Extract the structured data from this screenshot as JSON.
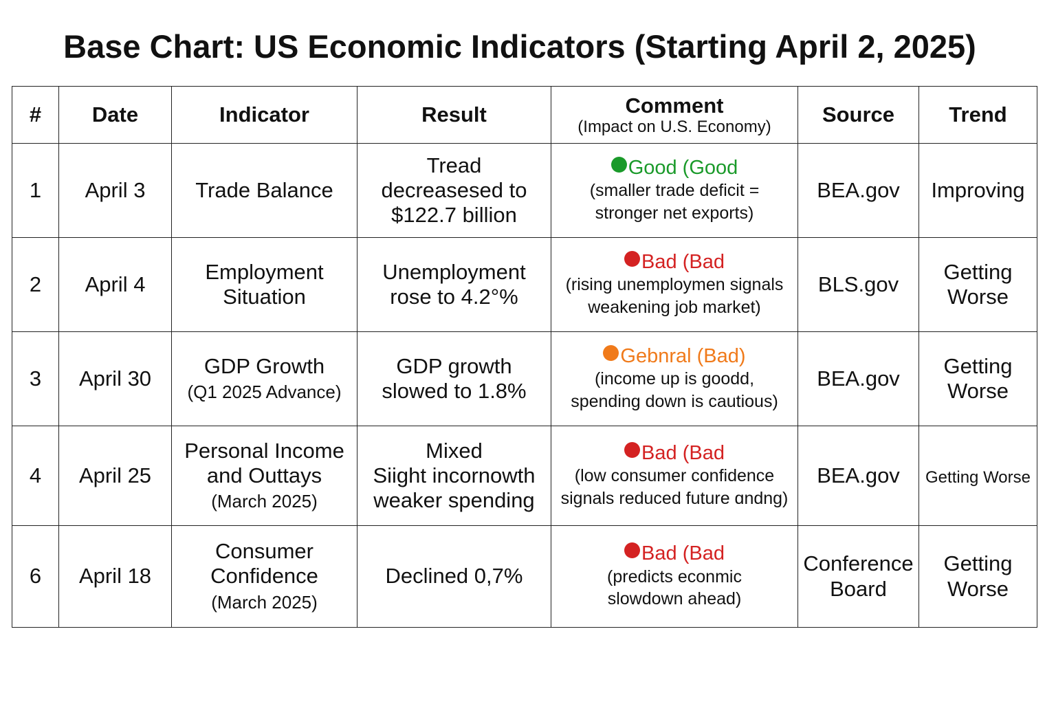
{
  "title": "Base Chart: US Economic Indicators (Starting April 2, 2025)",
  "headers": {
    "num": "#",
    "date": "Date",
    "indicator": "Indicator",
    "result": "Result",
    "comment": "Comment",
    "comment_sub": "(Impact on U.S. Economy)",
    "source": "Source",
    "trend": "Trend"
  },
  "colors": {
    "good": "#1a9a2a",
    "bad": "#d42222",
    "neutral": "#f07a1a"
  },
  "rows": [
    {
      "num": "1",
      "date": "April 3",
      "indicator": [
        "Trade Balance"
      ],
      "result": [
        "Tread",
        "decreasesed to",
        "$122.7 billion"
      ],
      "status": "Good (Good",
      "status_color": "good",
      "comment": [
        "(smaller trade deficit =",
        "stronger net exports)"
      ],
      "source": [
        "BEA.gov"
      ],
      "trend": [
        "Improving"
      ]
    },
    {
      "num": "2",
      "date": "April 4",
      "indicator": [
        "Employment",
        "Situation"
      ],
      "result": [
        "Unemployment",
        "rose to 4.2°%"
      ],
      "status": "Bad (Bad",
      "status_color": "bad",
      "comment": [
        "(rising unemploymen signals",
        "weakening job market)"
      ],
      "source": [
        "BLS.gov"
      ],
      "trend": [
        "Getting",
        "Worse"
      ]
    },
    {
      "num": "3",
      "date": "April 30",
      "indicator": [
        "GDP Growth",
        "(Q1 2025 Advance)"
      ],
      "result": [
        "GDP growth",
        "slowed to 1.8%"
      ],
      "status": "Gebnral (Bad)",
      "status_color": "neutral",
      "comment": [
        "(income up is goodd,",
        "spending down is cautious)"
      ],
      "source": [
        "BEA.gov"
      ],
      "trend": [
        "Getting",
        "Worse"
      ]
    },
    {
      "num": "4",
      "date": "April 25",
      "indicator": [
        "Personal Income",
        "and Outtays",
        "(March 2025)"
      ],
      "result": [
        "Mixed",
        "Siight incornowth",
        "weaker spending"
      ],
      "status": "Bad (Bad",
      "status_color": "bad",
      "comment": [
        "(low consumer confidence",
        "signals reduced future ɑndng)"
      ],
      "source": [
        "BEA.gov"
      ],
      "trend": [
        "Getting Worse"
      ]
    },
    {
      "num": "6",
      "date": "April 18",
      "indicator": [
        "Consumer",
        "Confidence",
        "(March 2025)"
      ],
      "result": [
        "Declined 0,7%"
      ],
      "status": "Bad (Bad",
      "status_color": "bad",
      "comment": [
        "(predicts econmic",
        "slowdown ahead)"
      ],
      "source": [
        "Conference",
        "Board"
      ],
      "trend": [
        "Getting",
        "Worse"
      ]
    }
  ]
}
